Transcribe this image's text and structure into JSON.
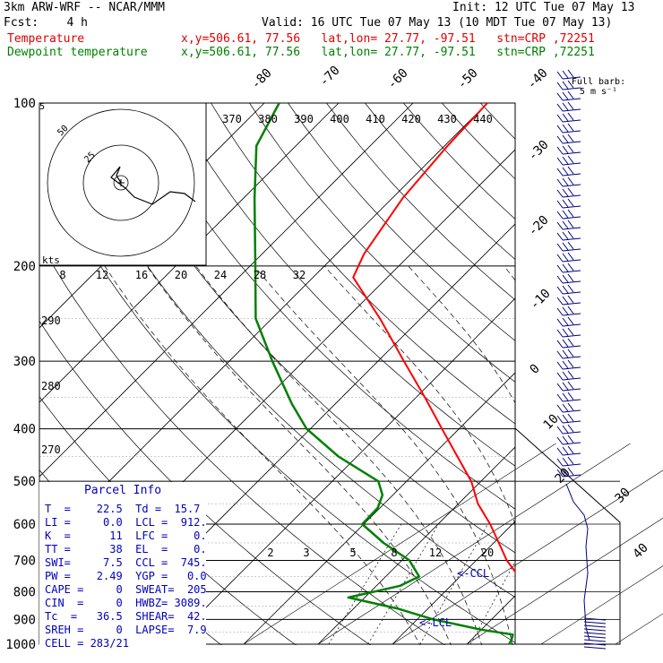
{
  "header": {
    "model": "3km ARW-WRF -- NCAR/MMM",
    "init": "Init: 12 UTC Tue 07 May 13",
    "fcst": "Fcst:    4 h",
    "valid": "Valid: 16 UTC Tue 07 May 13 (10 MDT Tue 07 May 13)",
    "temp_label": "Temperature",
    "temp_info": "x,y=506.61, 77.56   lat,lon= 27.77, -97.51   stn=CRP ,72251",
    "dew_label": "Dewpoint temperature",
    "dew_info": "x,y=506.61, 77.56   lat,lon= 27.77, -97.51   stn=CRP ,72251"
  },
  "colors": {
    "temperature": "#ff0000",
    "dewpoint": "#008000",
    "panel_text": "#0000c0",
    "barbs": "#000080"
  },
  "chart_data": {
    "type": "line",
    "pressure_labels": [
      "100",
      "200",
      "300",
      "400",
      "500",
      "600",
      "700",
      "800",
      "900",
      "1000"
    ],
    "temp_axis_labels": [
      "-80",
      "-70",
      "-60",
      "-50",
      "-40",
      "-30",
      "-20",
      "-10",
      "0",
      "10",
      "20",
      "30",
      "40"
    ],
    "theta_labels": [
      "370",
      "380",
      "390",
      "400",
      "410",
      "420",
      "430",
      "440"
    ],
    "wind_speed_labels": [
      "8",
      "12",
      "16",
      "20",
      "24",
      "28",
      "32"
    ],
    "theta_side_labels": [
      "290",
      "280",
      "270"
    ],
    "mixing_ratio_labels": [
      "2",
      "3",
      "5",
      "8",
      "12",
      "20"
    ],
    "hodograph_labels": [
      "5",
      "25",
      "50"
    ],
    "hodograph_units": "kts",
    "ccl_label": "<-CCL",
    "lcl_label": "<-LCL",
    "barb_legend": [
      "Full barb:",
      "5 m s⁻¹"
    ],
    "series": [
      {
        "name": "Temperature",
        "points": [
          [
            1000,
            22.5
          ],
          [
            980,
            18.4
          ],
          [
            950,
            17.3
          ],
          [
            920,
            18.9
          ],
          [
            880,
            17.8
          ],
          [
            850,
            14.4
          ],
          [
            800,
            11.0
          ],
          [
            750,
            7.9
          ],
          [
            700,
            4.1
          ],
          [
            650,
            0.7
          ],
          [
            600,
            -3.0
          ],
          [
            550,
            -7.4
          ],
          [
            500,
            -11.3
          ],
          [
            450,
            -16.5
          ],
          [
            400,
            -22.3
          ],
          [
            350,
            -28.8
          ],
          [
            300,
            -36.5
          ],
          [
            250,
            -45.5
          ],
          [
            210,
            -54.6
          ],
          [
            190,
            -56.3
          ],
          [
            150,
            -58.6
          ],
          [
            120,
            -59.6
          ],
          [
            100,
            -60.0
          ]
        ]
      },
      {
        "name": "Dewpoint temperature",
        "points": [
          [
            1000,
            15.7
          ],
          [
            980,
            15.4
          ],
          [
            960,
            14.9
          ],
          [
            940,
            10.0
          ],
          [
            900,
            2.2
          ],
          [
            860,
            -4.0
          ],
          [
            820,
            -12.2
          ],
          [
            780,
            -6.8
          ],
          [
            750,
            -5.5
          ],
          [
            700,
            -9.0
          ],
          [
            650,
            -14.8
          ],
          [
            600,
            -20.2
          ],
          [
            560,
            -20.3
          ],
          [
            530,
            -21.4
          ],
          [
            500,
            -23.8
          ],
          [
            450,
            -32.5
          ],
          [
            400,
            -40.5
          ],
          [
            360,
            -45.8
          ],
          [
            300,
            -54.2
          ],
          [
            250,
            -62.2
          ],
          [
            200,
            -69.3
          ],
          [
            150,
            -78.5
          ],
          [
            120,
            -85.3
          ],
          [
            100,
            -88.0
          ]
        ]
      }
    ],
    "hodograph": [
      [
        0,
        0
      ],
      [
        0.5,
        -0.5
      ],
      [
        1.0,
        -2.0
      ],
      [
        3.5,
        -3.0
      ],
      [
        5.5,
        -4.5
      ],
      [
        7.5,
        -5.5
      ],
      [
        9.5,
        -5.0
      ],
      [
        11.5,
        -3.0
      ],
      [
        13.0,
        -2.0
      ]
    ]
  },
  "parcel_info": {
    "title": "Parcel Info",
    "rows": [
      "T  =    22.5  Td =  15.7",
      "LI =     0.0  LCL =  912.",
      "K  =      11  LFC =    0.",
      "TT =      38  EL  =    0.",
      "SWI=     7.5  CCL =  745.",
      "PW =    2.49  YGP =   0.0",
      "CAPE =     0  SWEAT=  205",
      "CIN  =     0  HWBZ= 3089.",
      "Tc  =   36.5  SHEAR=  42.",
      "SREH =     0  LAPSE=  7.9",
      "CELL = 283/21"
    ]
  }
}
